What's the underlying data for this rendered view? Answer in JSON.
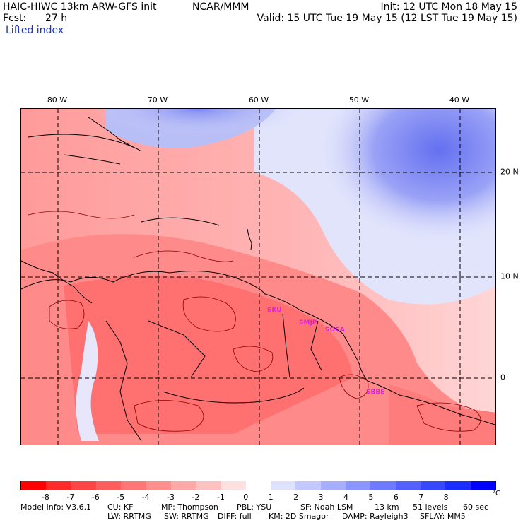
{
  "header": {
    "model": "HAIC-HIWC 13km ARW-GFS init",
    "org": "NCAR/MMM",
    "init": "Init: 12 UTC Mon 18 May 15",
    "fcst_label": "Fcst:",
    "fcst_value": "27 h",
    "valid": "Valid: 15 UTC Tue 19 May 15 (12 LST Tue 19 May 15)",
    "field": "Lifted index"
  },
  "map": {
    "lon_labels": [
      "80 W",
      "70 W",
      "60 W",
      "50 W",
      "40 W"
    ],
    "lat_labels": [
      "20 N",
      "10 N",
      "0"
    ],
    "sites": [
      "SKU",
      "SMJP",
      "SOCA",
      "SBBE"
    ]
  },
  "colorbar": {
    "ticks": [
      "-8",
      "-7",
      "-6",
      "-5",
      "-4",
      "-3",
      "-2",
      "-1",
      "0",
      "1",
      "2",
      "3",
      "4",
      "5",
      "6",
      "7",
      "8"
    ],
    "unit": "°C",
    "colors": [
      "#ff0000",
      "#ff2a2a",
      "#ff4646",
      "#ff5e5e",
      "#ff7676",
      "#ff8e8e",
      "#ffa8a8",
      "#ffc2c2",
      "#ffe0e0",
      "#ffffff",
      "#dfe2ff",
      "#c3c8ff",
      "#a8aeff",
      "#8c94ff",
      "#707aff",
      "#5460ff",
      "#3848ff",
      "#1c2eff",
      "#0000ff"
    ]
  },
  "footer": {
    "line1": [
      "Model Info: V3.6.1",
      "CU: KF",
      "MP: Thompson",
      "PBL: YSU",
      "SF: Noah LSM",
      "13 km",
      "51 levels",
      "60 sec"
    ],
    "line2": [
      "LW: RRTMG",
      "SW: RRTMG",
      "DIFF: full",
      "KM: 2D Smagor",
      "DAMP: Rayleigh3",
      "SFLAY: MM5"
    ]
  }
}
